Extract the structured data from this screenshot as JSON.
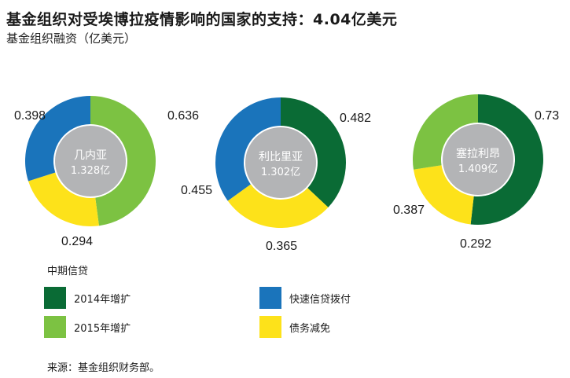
{
  "title": "基金组织对受埃博拉疫情影响的国家的支持：4.04亿美元",
  "subtitle": "基金组织融资（亿美元）",
  "colors": {
    "expansion_2014": "#0a6b35",
    "expansion_2015": "#7cc242",
    "rapid_credit": "#1a74bb",
    "debt_relief": "#fde21a",
    "center": "#b3b4b6"
  },
  "chart_data": [
    {
      "type": "pie",
      "country": "几内亚",
      "total": "1.328亿",
      "slices": [
        {
          "series": "2015年增扩",
          "value": 0.636,
          "label": "0.636"
        },
        {
          "series": "债务减免",
          "value": 0.294,
          "label": "0.294"
        },
        {
          "series": "快速信贷拨付",
          "value": 0.398,
          "label": "0.398"
        }
      ]
    },
    {
      "type": "pie",
      "country": "利比里亚",
      "total": "1.302亿",
      "slices": [
        {
          "series": "2014年增扩",
          "value": 0.482,
          "label": "0.482"
        },
        {
          "series": "债务减免",
          "value": 0.365,
          "label": "0.365"
        },
        {
          "series": "快速信贷拨付",
          "value": 0.455,
          "label": "0.455"
        }
      ]
    },
    {
      "type": "pie",
      "country": "塞拉利昂",
      "total": "1.409亿",
      "slices": [
        {
          "series": "2014年增扩",
          "value": 0.73,
          "label": "0.73"
        },
        {
          "series": "债务减免",
          "value": 0.292,
          "label": "0.292"
        },
        {
          "series": "2015年增扩",
          "value": 0.387,
          "label": "0.387"
        }
      ]
    }
  ],
  "legend": {
    "section_title": "中期信贷",
    "items": [
      {
        "label": "2014年增扩",
        "color": "#0a6b35"
      },
      {
        "label": "快速信贷拨付",
        "color": "#1a74bb"
      },
      {
        "label": "2015年增扩",
        "color": "#7cc242"
      },
      {
        "label": "债务减免",
        "color": "#fde21a"
      }
    ]
  },
  "source": "来源：基金组织财务部。"
}
